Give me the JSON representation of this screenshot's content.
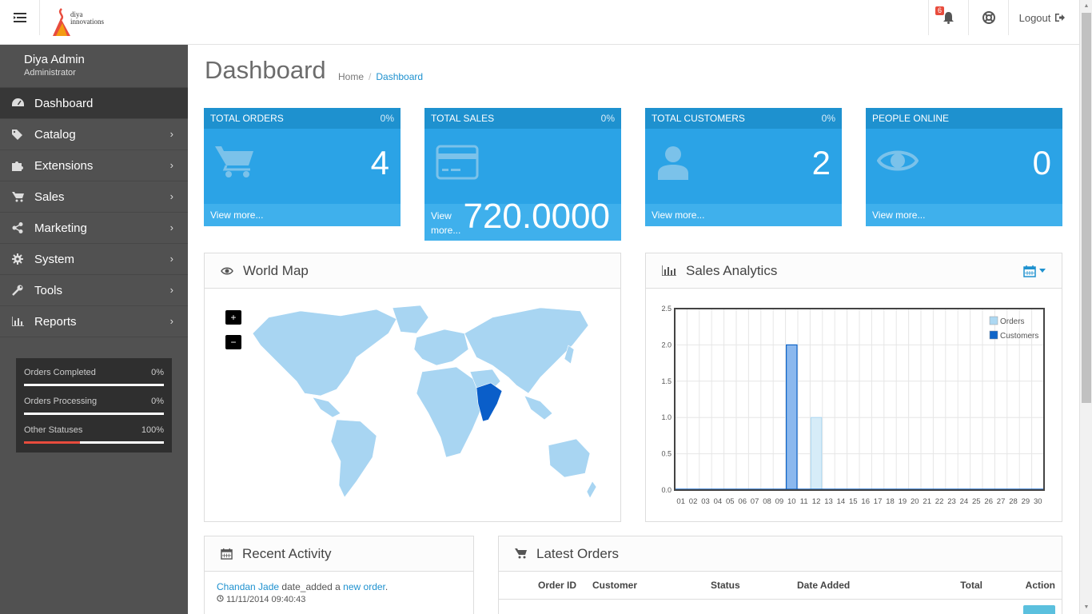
{
  "header": {
    "menu_icon": "menu-icon",
    "logo_line1": "diya",
    "logo_line2": "innovations",
    "notifications_count": "6",
    "logout_label": "Logout"
  },
  "sidebar": {
    "user_name": "Diya Admin",
    "user_role": "Administrator",
    "items": [
      {
        "label": "Dashboard",
        "icon": "dashboard-icon"
      },
      {
        "label": "Catalog",
        "icon": "tags-icon"
      },
      {
        "label": "Extensions",
        "icon": "puzzle-icon"
      },
      {
        "label": "Sales",
        "icon": "cart-icon"
      },
      {
        "label": "Marketing",
        "icon": "share-icon"
      },
      {
        "label": "System",
        "icon": "gear-icon"
      },
      {
        "label": "Tools",
        "icon": "wrench-icon"
      },
      {
        "label": "Reports",
        "icon": "bar-chart-icon"
      }
    ],
    "stats": [
      {
        "label": "Orders Completed",
        "value": "0%",
        "fill": 0
      },
      {
        "label": "Orders Processing",
        "value": "0%",
        "fill": 0
      },
      {
        "label": "Other Statuses",
        "value": "100%",
        "fill": 0.4
      }
    ]
  },
  "page": {
    "title": "Dashboard",
    "breadcrumb": [
      "Home",
      "Dashboard"
    ]
  },
  "tiles": [
    {
      "title": "TOTAL ORDERS",
      "pct": "0%",
      "value": "4",
      "link": "View more...",
      "icon": "cart-icon"
    },
    {
      "title": "TOTAL SALES",
      "pct": "0%",
      "value": "720.0000",
      "link": "View more...",
      "icon": "credit-card-icon"
    },
    {
      "title": "TOTAL CUSTOMERS",
      "pct": "0%",
      "value": "2",
      "link": "View more...",
      "icon": "user-icon"
    },
    {
      "title": "PEOPLE ONLINE",
      "pct": "",
      "value": "0",
      "link": "View more...",
      "icon": "eye-icon"
    }
  ],
  "world_map": {
    "title": "World Map",
    "zoom_in": "+",
    "zoom_out": "−",
    "highlight_color": "#0a5ec9",
    "base_color": "#a8d5f2"
  },
  "sales_analytics": {
    "title": "Sales Analytics"
  },
  "chart_data": {
    "type": "bar",
    "categories": [
      "01",
      "02",
      "03",
      "04",
      "05",
      "06",
      "07",
      "08",
      "09",
      "10",
      "11",
      "12",
      "13",
      "14",
      "15",
      "16",
      "17",
      "18",
      "19",
      "20",
      "21",
      "22",
      "23",
      "24",
      "25",
      "26",
      "27",
      "28",
      "29",
      "30"
    ],
    "series": [
      {
        "name": "Orders",
        "color": "#add8f2",
        "values": [
          0,
          0,
          0,
          0,
          0,
          0,
          0,
          0,
          0,
          2,
          0,
          1,
          0,
          0,
          0,
          0,
          0,
          0,
          0,
          0,
          0,
          0,
          0,
          0,
          0,
          0,
          0,
          0,
          0,
          0
        ]
      },
      {
        "name": "Customers",
        "color": "#1065c8",
        "values": [
          0,
          0,
          0,
          0,
          0,
          0,
          0,
          0,
          0,
          2,
          0,
          0,
          0,
          0,
          0,
          0,
          0,
          0,
          0,
          0,
          0,
          0,
          0,
          0,
          0,
          0,
          0,
          0,
          0,
          0
        ]
      }
    ],
    "yticks": [
      "0.0",
      "0.5",
      "1.0",
      "1.5",
      "2.0",
      "2.5"
    ],
    "ylim": [
      0,
      2.5
    ],
    "grid": true,
    "legend": "top-right"
  },
  "recent_activity": {
    "title": "Recent Activity",
    "items": [
      {
        "name": "Chandan Jade",
        "action": "date_added a",
        "link": "new order",
        "end": ".",
        "time": "11/11/2014 09:40:43"
      }
    ]
  },
  "latest_orders": {
    "title": "Latest Orders",
    "columns": [
      "Order ID",
      "Customer",
      "Status",
      "Date Added",
      "Total",
      "Action"
    ]
  }
}
